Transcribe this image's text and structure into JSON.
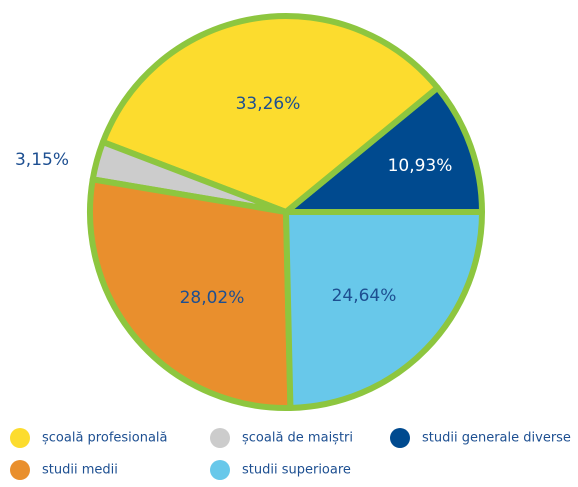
{
  "chart_data": {
    "type": "pie",
    "categories": [
      "studii generale diverse",
      "școală profesională",
      "școală de maiștri",
      "studii medii",
      "studii superioare"
    ],
    "values": [
      10.93,
      33.26,
      3.15,
      28.02,
      24.64
    ],
    "value_labels": [
      "10,93%",
      "33,26%",
      "3,15%",
      "28,02%",
      "24,64%"
    ],
    "colors": [
      "#004a8f",
      "#fcdc2e",
      "#cccccc",
      "#e98f2d",
      "#68c8ea"
    ],
    "border_color": "#8dc63f"
  }
}
